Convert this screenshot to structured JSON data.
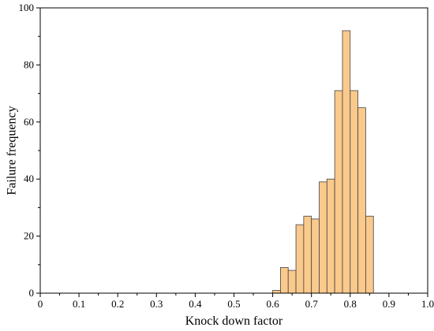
{
  "chart_data": {
    "type": "bar",
    "subtype": "histogram",
    "title": "",
    "xlabel": "Knock down factor",
    "ylabel": "Failure frequency",
    "xlim": [
      0,
      1.0
    ],
    "ylim": [
      0,
      100
    ],
    "bin_width": 0.02,
    "x_ticks": [
      "0",
      "0.1",
      "0.2",
      "0.3",
      "0.4",
      "0.5",
      "0.6",
      "0.7",
      "0.8",
      "0.9",
      "1.0"
    ],
    "y_ticks": [
      "0",
      "20",
      "40",
      "60",
      "80",
      "100"
    ],
    "bins": [
      {
        "x0": 0.6,
        "x1": 0.62,
        "value": 1
      },
      {
        "x0": 0.62,
        "x1": 0.64,
        "value": 9
      },
      {
        "x0": 0.64,
        "x1": 0.66,
        "value": 8
      },
      {
        "x0": 0.66,
        "x1": 0.68,
        "value": 24
      },
      {
        "x0": 0.68,
        "x1": 0.7,
        "value": 27
      },
      {
        "x0": 0.7,
        "x1": 0.72,
        "value": 26
      },
      {
        "x0": 0.72,
        "x1": 0.74,
        "value": 39
      },
      {
        "x0": 0.74,
        "x1": 0.76,
        "value": 40
      },
      {
        "x0": 0.76,
        "x1": 0.78,
        "value": 71
      },
      {
        "x0": 0.78,
        "x1": 0.8,
        "value": 92
      },
      {
        "x0": 0.8,
        "x1": 0.82,
        "value": 71
      },
      {
        "x0": 0.82,
        "x1": 0.84,
        "value": 65
      },
      {
        "x0": 0.84,
        "x1": 0.86,
        "value": 27
      }
    ],
    "bar_color": "#FAC98C",
    "bar_edge_color": "#444444",
    "grid": false,
    "legend": "none"
  }
}
